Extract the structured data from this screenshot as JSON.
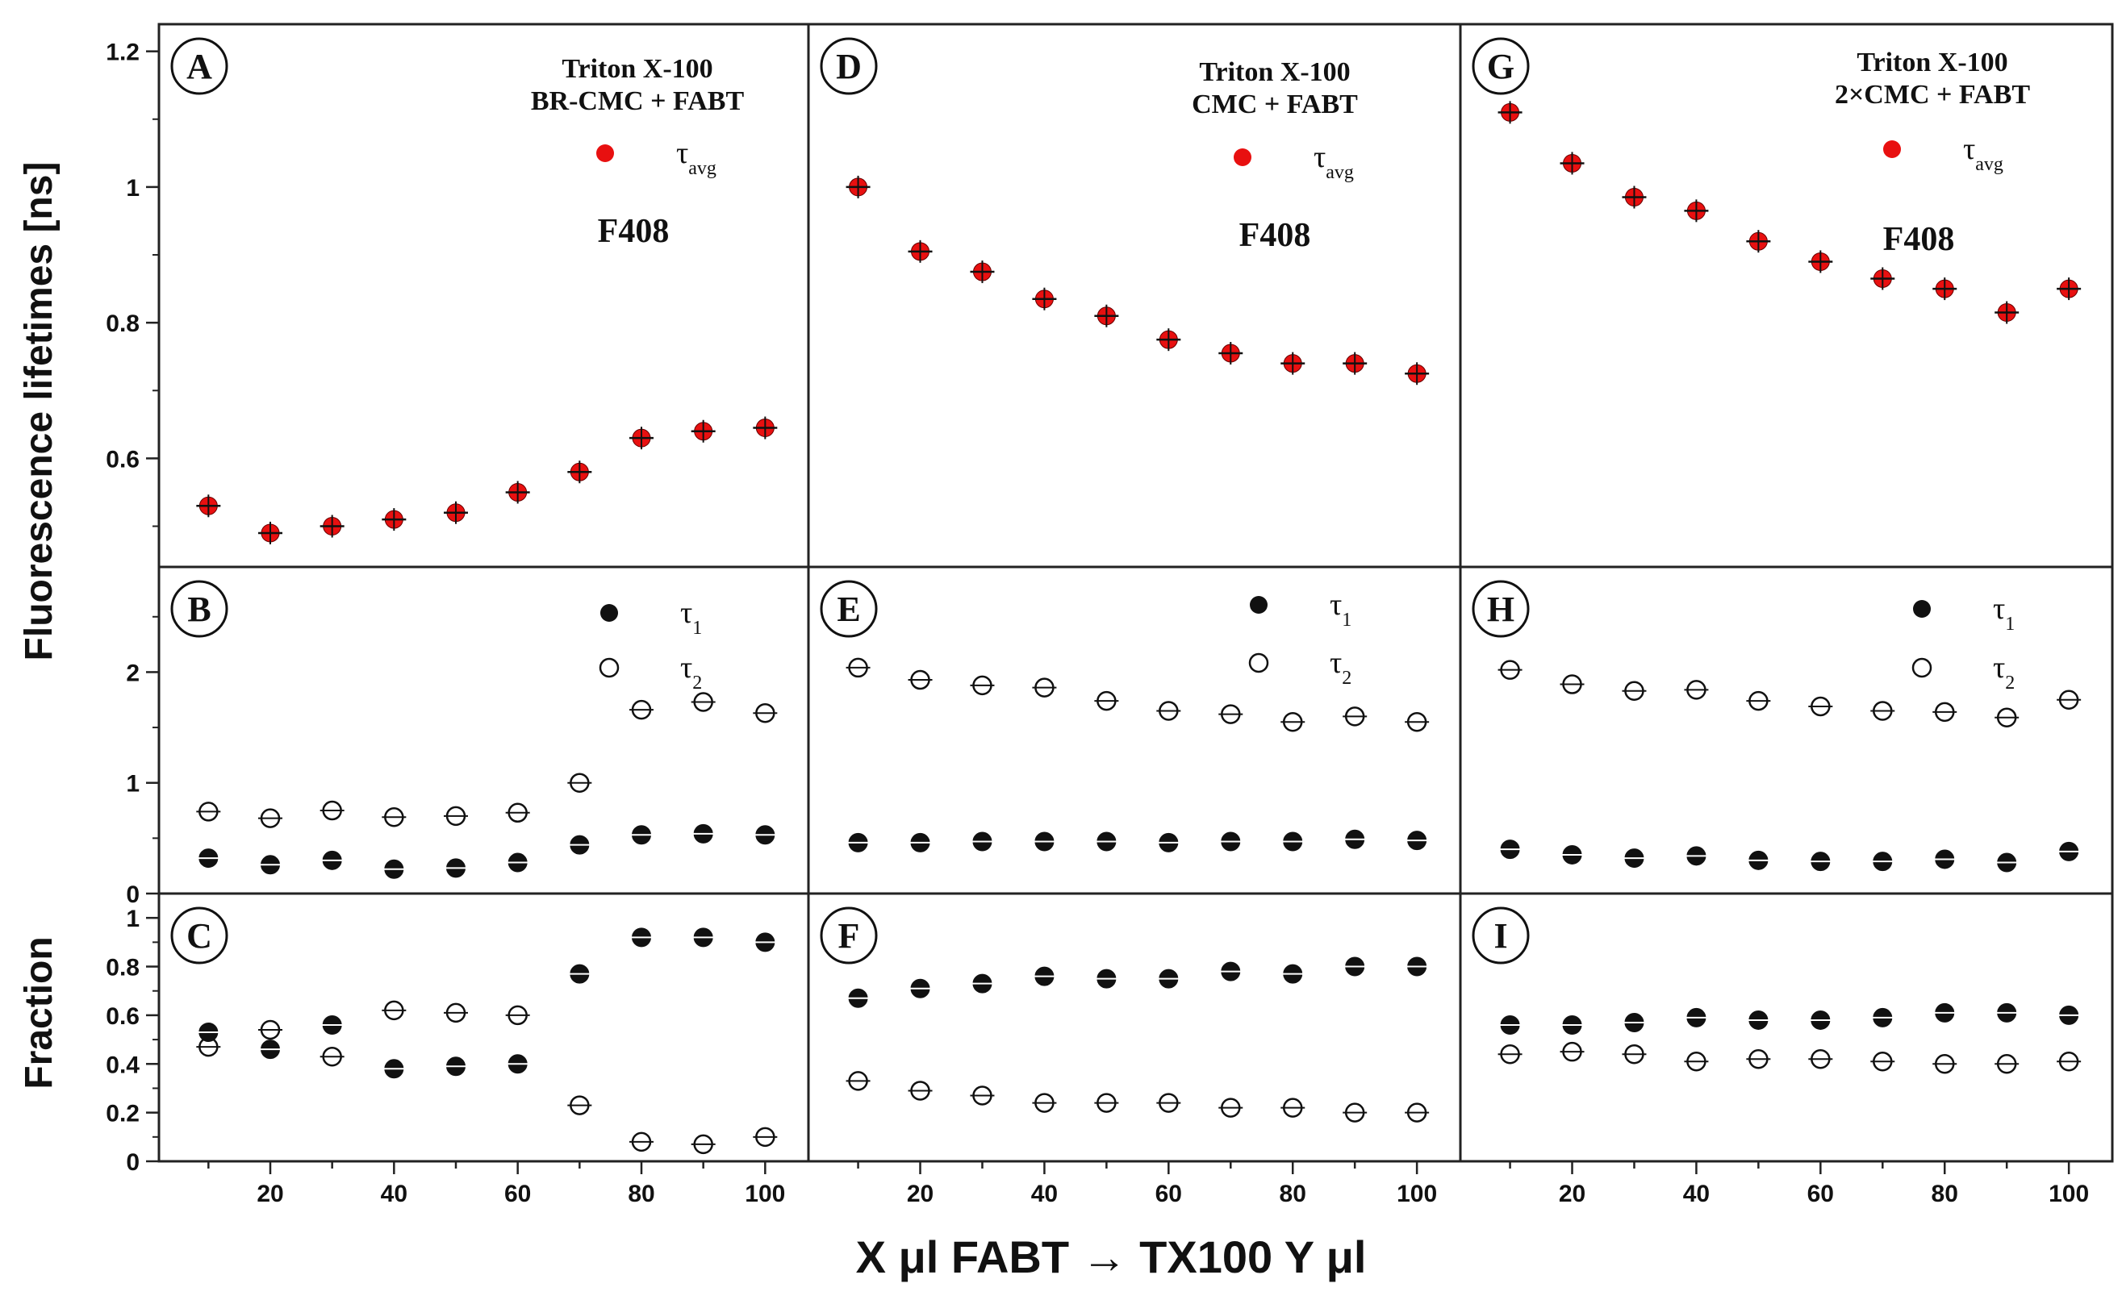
{
  "chart_data": {
    "type": "scatter",
    "xlabel": "X μl FABT → TX100 Y μl",
    "ylabel_top": "Fluorescence lifetimes [ns]",
    "ylabel_bottom": "Fraction",
    "x_ticks": [
      "20",
      "40",
      "60",
      "80",
      "100"
    ],
    "x": [
      10,
      20,
      30,
      40,
      50,
      60,
      70,
      80,
      90,
      100
    ],
    "row_ticks": {
      "avg": [
        "0.6",
        "0.8",
        "1",
        "1.2"
      ],
      "lifetimes": [
        "0",
        "1",
        "2"
      ],
      "fraction": [
        "0",
        "0.2",
        "0.4",
        "0.6",
        "0.8",
        "1"
      ]
    },
    "legend": {
      "tau_avg": {
        "sym": "τ",
        "sub": "avg"
      },
      "tau1": {
        "sym": "τ",
        "sub": "1"
      },
      "tau2": {
        "sym": "τ",
        "sub": "2"
      }
    },
    "marker_label": "F408",
    "columns": [
      {
        "condition": [
          "Triton X-100",
          "BR-CMC + FABT"
        ],
        "letters": [
          "A",
          "B",
          "C"
        ],
        "tau_avg": [
          0.53,
          0.49,
          0.5,
          0.51,
          0.52,
          0.55,
          0.58,
          0.63,
          0.64,
          0.645
        ],
        "tau1": [
          0.32,
          0.26,
          0.3,
          0.22,
          0.23,
          0.28,
          0.44,
          0.53,
          0.54,
          0.53
        ],
        "tau2": [
          0.74,
          0.68,
          0.75,
          0.69,
          0.7,
          0.73,
          1.0,
          1.66,
          1.73,
          1.63
        ],
        "f1": [
          0.53,
          0.46,
          0.56,
          0.38,
          0.39,
          0.4,
          0.77,
          0.92,
          0.92,
          0.9
        ],
        "f2": [
          0.47,
          0.54,
          0.43,
          0.62,
          0.61,
          0.6,
          0.23,
          0.08,
          0.07,
          0.1
        ]
      },
      {
        "condition": [
          "Triton X-100",
          "CMC + FABT"
        ],
        "letters": [
          "D",
          "E",
          "F"
        ],
        "tau_avg": [
          1.0,
          0.905,
          0.875,
          0.835,
          0.81,
          0.775,
          0.755,
          0.74,
          0.74,
          0.725
        ],
        "tau1": [
          0.46,
          0.46,
          0.47,
          0.47,
          0.47,
          0.46,
          0.47,
          0.47,
          0.49,
          0.48
        ],
        "tau2": [
          2.04,
          1.93,
          1.88,
          1.86,
          1.74,
          1.65,
          1.62,
          1.55,
          1.6,
          1.55
        ],
        "f1": [
          0.67,
          0.71,
          0.73,
          0.76,
          0.75,
          0.75,
          0.78,
          0.77,
          0.8,
          0.8
        ],
        "f2": [
          0.33,
          0.29,
          0.27,
          0.24,
          0.24,
          0.24,
          0.22,
          0.22,
          0.2,
          0.2
        ]
      },
      {
        "condition": [
          "Triton X-100",
          "2×CMC + FABT"
        ],
        "letters": [
          "G",
          "H",
          "I"
        ],
        "tau_avg": [
          1.11,
          1.035,
          0.985,
          0.965,
          0.92,
          0.89,
          0.865,
          0.85,
          0.815,
          0.85
        ],
        "tau1": [
          0.4,
          0.35,
          0.32,
          0.34,
          0.3,
          0.29,
          0.29,
          0.31,
          0.28,
          0.38
        ],
        "tau2": [
          2.02,
          1.89,
          1.83,
          1.84,
          1.74,
          1.69,
          1.65,
          1.64,
          1.59,
          1.75
        ],
        "f1": [
          0.56,
          0.56,
          0.57,
          0.59,
          0.58,
          0.58,
          0.59,
          0.61,
          0.61,
          0.6
        ],
        "f2": [
          0.44,
          0.45,
          0.44,
          0.41,
          0.42,
          0.42,
          0.41,
          0.4,
          0.4,
          0.41
        ]
      }
    ],
    "colors": {
      "avg": "#e81010",
      "fill1": "#111111",
      "stroke": "#111111"
    },
    "ranges": {
      "avg": [
        0.44,
        1.24
      ],
      "lifetimes": [
        0,
        2.95
      ],
      "fraction": [
        0,
        1.1
      ],
      "x": [
        2,
        107
      ]
    }
  }
}
